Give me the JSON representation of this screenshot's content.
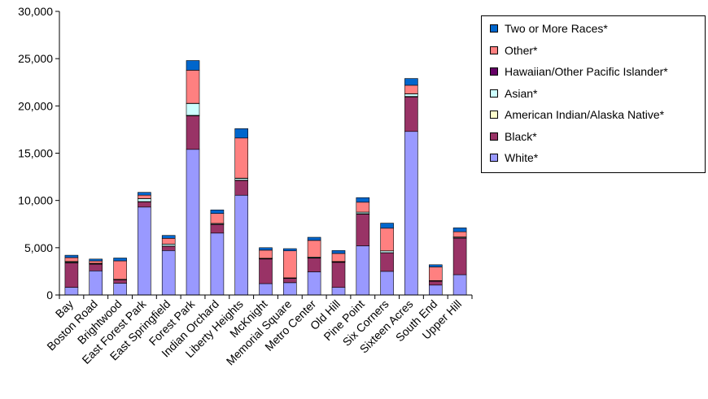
{
  "chart_data": {
    "type": "bar",
    "stacked": true,
    "categories": [
      "Bay",
      "Boston Road",
      "Brightwood",
      "East Forest Park",
      "East Springfield",
      "Forest Park",
      "Indian Orchard",
      "Liberty Heights",
      "McKnight",
      "Memorial Square",
      "Metro Center",
      "Old Hill",
      "Pine Point",
      "Six Corners",
      "Sixteen Acres",
      "South End",
      "Upper Hill"
    ],
    "ylim": [
      0,
      30000
    ],
    "yticks": [
      0,
      5000,
      10000,
      15000,
      20000,
      25000,
      30000
    ],
    "ytick_labels": [
      "0",
      "5,000",
      "10,000",
      "15,000",
      "20,000",
      "25,000",
      "30,000"
    ],
    "grid": false,
    "legend_position": "top-right",
    "series": [
      {
        "name": "White*",
        "color": "#9999ff",
        "values": [
          800,
          2550,
          1250,
          9300,
          4700,
          15400,
          6550,
          10550,
          1200,
          1300,
          2450,
          800,
          5200,
          2500,
          17300,
          1050,
          2150
        ]
      },
      {
        "name": "Black*",
        "color": "#993366",
        "values": [
          2600,
          700,
          350,
          550,
          450,
          3550,
          900,
          1550,
          2600,
          450,
          1450,
          2650,
          3350,
          1950,
          3650,
          400,
          3850
        ]
      },
      {
        "name": "American Indian/Alaska Native*",
        "color": "#ffffcc",
        "values": [
          50,
          30,
          20,
          40,
          30,
          50,
          30,
          60,
          30,
          20,
          30,
          30,
          50,
          30,
          60,
          20,
          40
        ]
      },
      {
        "name": "Asian*",
        "color": "#ccffff",
        "values": [
          80,
          60,
          30,
          300,
          200,
          1250,
          80,
          170,
          50,
          40,
          80,
          50,
          150,
          180,
          250,
          40,
          80
        ]
      },
      {
        "name": "Hawaiian/Other Pacific Islander*",
        "color": "#660066",
        "values": [
          20,
          10,
          10,
          20,
          10,
          30,
          10,
          30,
          10,
          10,
          10,
          10,
          20,
          10,
          30,
          10,
          20
        ]
      },
      {
        "name": "Other*",
        "color": "#ff8080",
        "values": [
          400,
          250,
          1950,
          350,
          600,
          3500,
          1050,
          4250,
          850,
          2850,
          1750,
          850,
          1050,
          2400,
          900,
          1450,
          550
        ]
      },
      {
        "name": "Two or More Races*",
        "color": "#0066cc",
        "values": [
          250,
          200,
          300,
          300,
          310,
          1020,
          380,
          990,
          260,
          230,
          330,
          310,
          480,
          530,
          710,
          230,
          410
        ]
      }
    ]
  }
}
